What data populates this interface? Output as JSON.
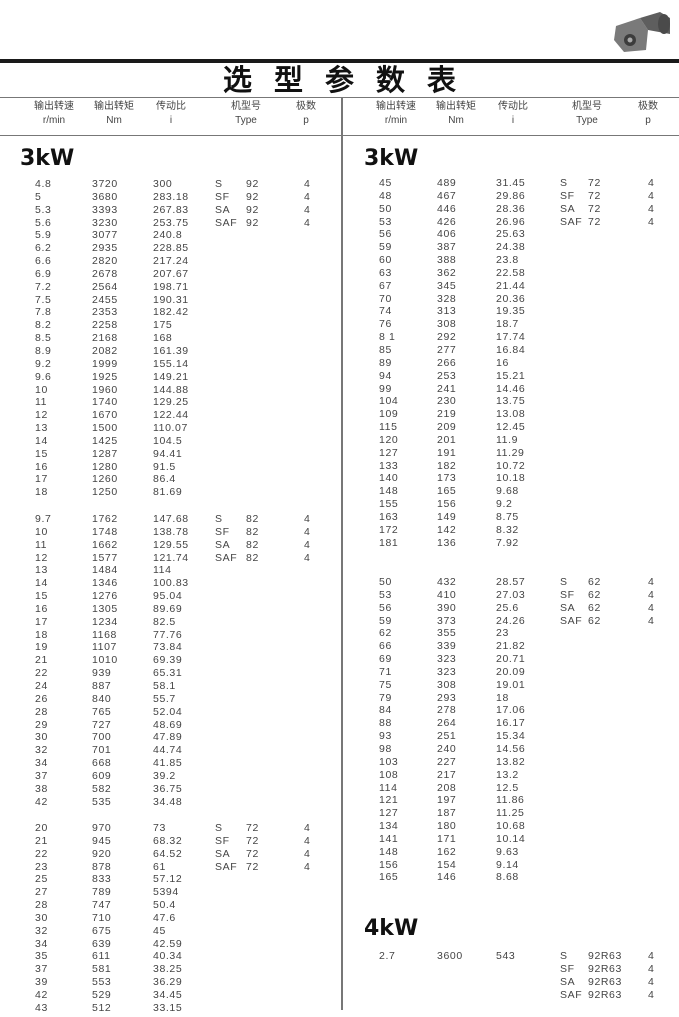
{
  "title": "选型参数表",
  "headers": [
    {
      "cn": "输出转速",
      "en": "r/min"
    },
    {
      "cn": "输出转矩",
      "en": "Nm"
    },
    {
      "cn": "传动比",
      "en": "i"
    },
    {
      "cn": "机型号",
      "en": "Type"
    },
    {
      "cn": "极数",
      "en": "p"
    }
  ],
  "left": {
    "power": "3kW",
    "blocks": [
      {
        "rows": [
          [
            "4.8",
            "3720",
            "300",
            "S",
            "92",
            "4"
          ],
          [
            "5",
            "3680",
            "283.18",
            "SF",
            "92",
            "4"
          ],
          [
            "5.3",
            "3393",
            "267.83",
            "SA",
            "92",
            "4"
          ],
          [
            "5.6",
            "3230",
            "253.75",
            "SAF",
            "92",
            "4"
          ],
          [
            "5.9",
            "3077",
            "240.8",
            "",
            "",
            ""
          ],
          [
            "6.2",
            "2935",
            "228.85",
            "",
            "",
            ""
          ],
          [
            "6.6",
            "2820",
            "217.24",
            "",
            "",
            ""
          ],
          [
            "6.9",
            "2678",
            "207.67",
            "",
            "",
            ""
          ],
          [
            "7.2",
            "2564",
            "198.71",
            "",
            "",
            ""
          ],
          [
            "7.5",
            "2455",
            "190.31",
            "",
            "",
            ""
          ],
          [
            "7.8",
            "2353",
            "182.42",
            "",
            "",
            ""
          ],
          [
            "8.2",
            "2258",
            "175",
            "",
            "",
            ""
          ],
          [
            "8.5",
            "2168",
            "168",
            "",
            "",
            ""
          ],
          [
            "8.9",
            "2082",
            "161.39",
            "",
            "",
            ""
          ],
          [
            "9.2",
            "1999",
            "155.14",
            "",
            "",
            ""
          ],
          [
            "9.6",
            "1925",
            "149.21",
            "",
            "",
            ""
          ],
          [
            "10",
            "1960",
            "144.88",
            "",
            "",
            ""
          ],
          [
            "11",
            "1740",
            "129.25",
            "",
            "",
            ""
          ],
          [
            "12",
            "1670",
            "122.44",
            "",
            "",
            ""
          ],
          [
            "13",
            "1500",
            "110.07",
            "",
            "",
            ""
          ],
          [
            "14",
            "1425",
            "104.5",
            "",
            "",
            ""
          ],
          [
            "15",
            "1287",
            "94.41",
            "",
            "",
            ""
          ],
          [
            "16",
            "1280",
            "91.5",
            "",
            "",
            ""
          ],
          [
            "17",
            "1260",
            "86.4",
            "",
            "",
            ""
          ],
          [
            "18",
            "1250",
            "81.69",
            "",
            "",
            ""
          ]
        ]
      },
      {
        "rows": [
          [
            "9.7",
            "1762",
            "147.68",
            "S",
            "82",
            "4"
          ],
          [
            "10",
            "1748",
            "138.78",
            "SF",
            "82",
            "4"
          ],
          [
            "11",
            "1662",
            "129.55",
            "SA",
            "82",
            "4"
          ],
          [
            "12",
            "1577",
            "121.74",
            "SAF",
            "82",
            "4"
          ],
          [
            "13",
            "1484",
            "114",
            "",
            "",
            ""
          ],
          [
            "14",
            "1346",
            "100.83",
            "",
            "",
            ""
          ],
          [
            "15",
            "1276",
            "95.04",
            "",
            "",
            ""
          ],
          [
            "16",
            "1305",
            "89.69",
            "",
            "",
            ""
          ],
          [
            "17",
            "1234",
            "82.5",
            "",
            "",
            ""
          ],
          [
            "18",
            "1168",
            "77.76",
            "",
            "",
            ""
          ],
          [
            "19",
            "1107",
            "73.84",
            "",
            "",
            ""
          ],
          [
            "21",
            "1010",
            "69.39",
            "",
            "",
            ""
          ],
          [
            "22",
            "939",
            "65.31",
            "",
            "",
            ""
          ],
          [
            "24",
            "887",
            "58.1",
            "",
            "",
            ""
          ],
          [
            "26",
            "840",
            "55.7",
            "",
            "",
            ""
          ],
          [
            "28",
            "765",
            "52.04",
            "",
            "",
            ""
          ],
          [
            "29",
            "727",
            "48.69",
            "",
            "",
            ""
          ],
          [
            "30",
            "700",
            "47.89",
            "",
            "",
            ""
          ],
          [
            "32",
            "701",
            "44.74",
            "",
            "",
            ""
          ],
          [
            "34",
            "668",
            "41.85",
            "",
            "",
            ""
          ],
          [
            "37",
            "609",
            "39.2",
            "",
            "",
            ""
          ],
          [
            "38",
            "582",
            "36.75",
            "",
            "",
            ""
          ],
          [
            "42",
            "535",
            "34.48",
            "",
            "",
            ""
          ]
        ]
      },
      {
        "rows": [
          [
            "20",
            "970",
            "73",
            "S",
            "72",
            "4"
          ],
          [
            "21",
            "945",
            "68.32",
            "SF",
            "72",
            "4"
          ],
          [
            "22",
            "920",
            "64.52",
            "SA",
            "72",
            "4"
          ],
          [
            "23",
            "878",
            "61",
            "SAF",
            "72",
            "4"
          ],
          [
            "25",
            "833",
            "57.12",
            "",
            "",
            ""
          ],
          [
            "27",
            "789",
            "5394",
            "",
            "",
            ""
          ],
          [
            "28",
            "747",
            "50.4",
            "",
            "",
            ""
          ],
          [
            "30",
            "710",
            "47.6",
            "",
            "",
            ""
          ],
          [
            "32",
            "675",
            "45",
            "",
            "",
            ""
          ],
          [
            "34",
            "639",
            "42.59",
            "",
            "",
            ""
          ],
          [
            "35",
            "611",
            "40.34",
            "",
            "",
            ""
          ],
          [
            "37",
            "581",
            "38.25",
            "",
            "",
            ""
          ],
          [
            "39",
            "553",
            "36.29",
            "",
            "",
            ""
          ],
          [
            "42",
            "529",
            "34.45",
            "",
            "",
            ""
          ],
          [
            "43",
            "512",
            "33.15",
            "",
            "",
            ""
          ]
        ]
      }
    ]
  },
  "right": {
    "power": "3kW",
    "blocks": [
      {
        "rows": [
          [
            "45",
            "489",
            "31.45",
            "S",
            "72",
            "4"
          ],
          [
            "48",
            "467",
            "29.86",
            "SF",
            "72",
            "4"
          ],
          [
            "50",
            "446",
            "28.36",
            "SA",
            "72",
            "4"
          ],
          [
            "53",
            "426",
            "26.96",
            "SAF",
            "72",
            "4"
          ],
          [
            "56",
            "406",
            "25.63",
            "",
            "",
            ""
          ],
          [
            "59",
            "387",
            "24.38",
            "",
            "",
            ""
          ],
          [
            "60",
            "388",
            "23.8",
            "",
            "",
            ""
          ],
          [
            "63",
            "362",
            "22.58",
            "",
            "",
            ""
          ],
          [
            "67",
            "345",
            "21.44",
            "",
            "",
            ""
          ],
          [
            "70",
            "328",
            "20.36",
            "",
            "",
            ""
          ],
          [
            "74",
            "313",
            "19.35",
            "",
            "",
            ""
          ],
          [
            "76",
            "308",
            "18.7",
            "",
            "",
            ""
          ],
          [
            "8 1",
            "292",
            "17.74",
            "",
            "",
            ""
          ],
          [
            "85",
            "277",
            "16.84",
            "",
            "",
            ""
          ],
          [
            "89",
            "266",
            "16",
            "",
            "",
            ""
          ],
          [
            "94",
            "253",
            "15.21",
            "",
            "",
            ""
          ],
          [
            "99",
            "241",
            "14.46",
            "",
            "",
            ""
          ],
          [
            "104",
            "230",
            "13.75",
            "",
            "",
            ""
          ],
          [
            "109",
            "219",
            "13.08",
            "",
            "",
            ""
          ],
          [
            "115",
            "209",
            "12.45",
            "",
            "",
            ""
          ],
          [
            "120",
            "201",
            "11.9",
            "",
            "",
            ""
          ],
          [
            "127",
            "191",
            "11.29",
            "",
            "",
            ""
          ],
          [
            "133",
            "182",
            "10.72",
            "",
            "",
            ""
          ],
          [
            "140",
            "173",
            "10.18",
            "",
            "",
            ""
          ],
          [
            "148",
            "165",
            "9.68",
            "",
            "",
            ""
          ],
          [
            "155",
            "156",
            "9.2",
            "",
            "",
            ""
          ],
          [
            "163",
            "149",
            "8.75",
            "",
            "",
            ""
          ],
          [
            "172",
            "142",
            "8.32",
            "",
            "",
            ""
          ],
          [
            "181",
            "136",
            "7.92",
            "",
            "",
            ""
          ]
        ]
      },
      {
        "rows": [
          [
            "50",
            "432",
            "28.57",
            "S",
            "62",
            "4"
          ],
          [
            "53",
            "410",
            "27.03",
            "SF",
            "62",
            "4"
          ],
          [
            "56",
            "390",
            "25.6",
            "SA",
            "62",
            "4"
          ],
          [
            "59",
            "373",
            "24.26",
            "SAF",
            "62",
            "4"
          ],
          [
            "62",
            "355",
            "23",
            "",
            "",
            ""
          ],
          [
            "66",
            "339",
            "21.82",
            "",
            "",
            ""
          ],
          [
            "69",
            "323",
            "20.71",
            "",
            "",
            ""
          ],
          [
            "71",
            "323",
            "20.09",
            "",
            "",
            ""
          ],
          [
            "75",
            "308",
            "19.01",
            "",
            "",
            ""
          ],
          [
            "79",
            "293",
            "18",
            "",
            "",
            ""
          ],
          [
            "84",
            "278",
            "17.06",
            "",
            "",
            ""
          ],
          [
            "88",
            "264",
            "16.17",
            "",
            "",
            ""
          ],
          [
            "93",
            "251",
            "15.34",
            "",
            "",
            ""
          ],
          [
            "98",
            "240",
            "14.56",
            "",
            "",
            ""
          ],
          [
            "103",
            "227",
            "13.82",
            "",
            "",
            ""
          ],
          [
            "108",
            "217",
            "13.2",
            "",
            "",
            ""
          ],
          [
            "114",
            "208",
            "12.5",
            "",
            "",
            ""
          ],
          [
            "121",
            "197",
            "11.86",
            "",
            "",
            ""
          ],
          [
            "127",
            "187",
            "11.25",
            "",
            "",
            ""
          ],
          [
            "134",
            "180",
            "10.68",
            "",
            "",
            ""
          ],
          [
            "141",
            "171",
            "10.14",
            "",
            "",
            ""
          ],
          [
            "148",
            "162",
            "9.63",
            "",
            "",
            ""
          ],
          [
            "156",
            "154",
            "9.14",
            "",
            "",
            ""
          ],
          [
            "165",
            "146",
            "8.68",
            "",
            "",
            ""
          ]
        ]
      }
    ],
    "power2": "4kW",
    "blocks2": [
      {
        "rows": [
          [
            "2.7",
            "3600",
            "543",
            "S",
            "92R63",
            "4"
          ],
          [
            "",
            "",
            "",
            "SF",
            "92R63",
            "4"
          ],
          [
            "",
            "",
            "",
            "SA",
            "92R63",
            "4"
          ],
          [
            "",
            "",
            "",
            "SAF",
            "92R63",
            "4"
          ]
        ]
      }
    ]
  }
}
